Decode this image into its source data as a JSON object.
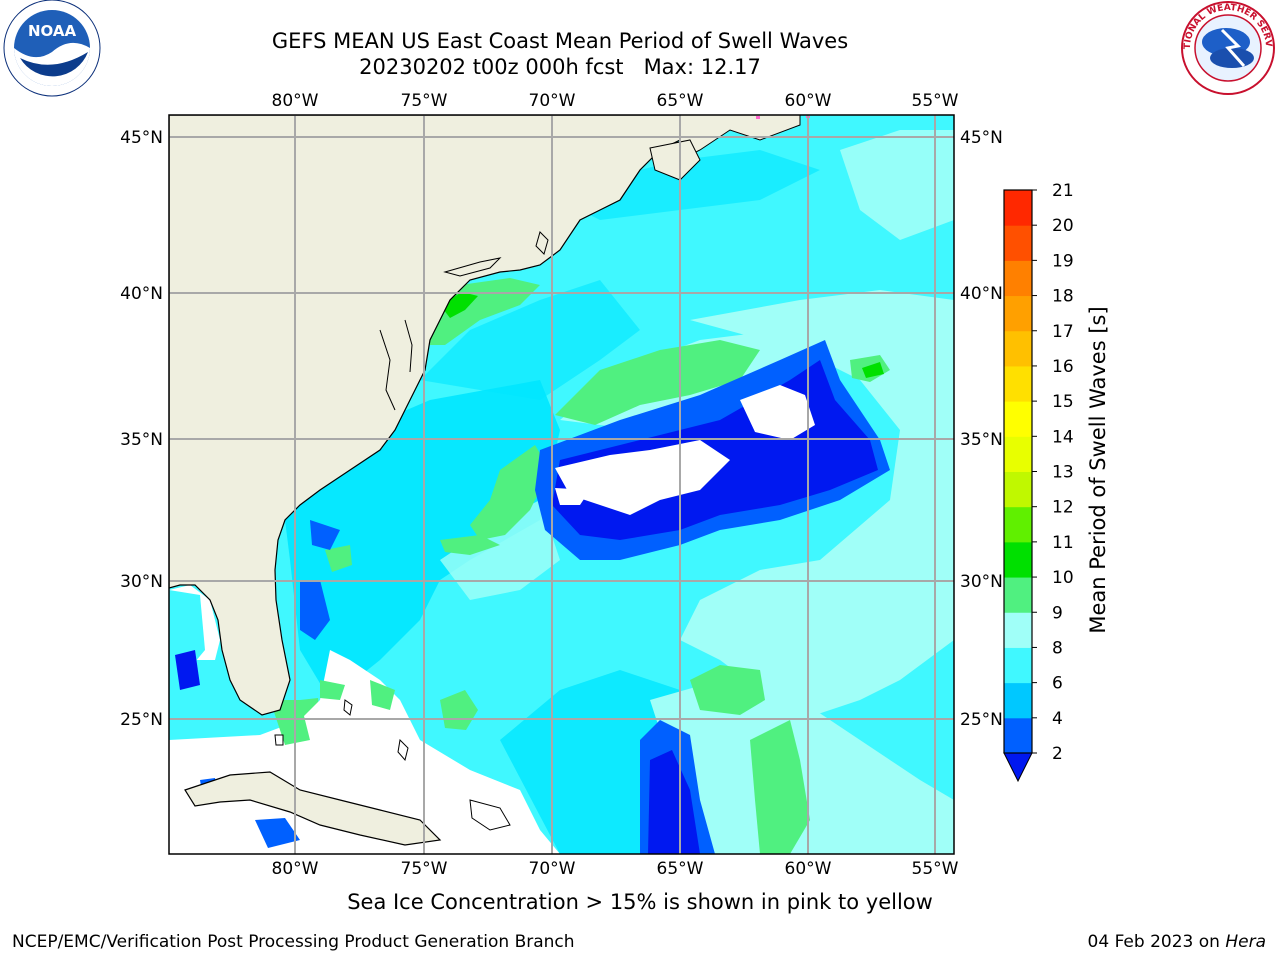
{
  "title": {
    "line1": "GEFS MEAN US East Coast Mean Period of Swell Waves",
    "line2": "20230202 t00z 000h fcst   Max: 12.17"
  },
  "logos": {
    "left": {
      "name": "noaa-logo",
      "text": "NOAA",
      "ring_text": "NATIONAL OCEANIC AND ATMOSPHERIC ADMINISTRATION · U.S. DEPARTMENT OF COMMERCE"
    },
    "right": {
      "name": "nws-logo",
      "ring_text": "NATIONAL WEATHER SERVICE"
    }
  },
  "map": {
    "lon_ticks_top": [
      "80°W",
      "75°W",
      "70°W",
      "65°W",
      "60°W",
      "55°W"
    ],
    "lon_ticks_bottom": [
      "80°W",
      "75°W",
      "70°W",
      "65°W",
      "60°W",
      "55°W"
    ],
    "lat_ticks_left": [
      "45°N",
      "40°N",
      "35°N",
      "30°N",
      "25°N"
    ],
    "lat_ticks_right": [
      "45°N",
      "40°N",
      "35°N",
      "30°N",
      "25°N"
    ],
    "lon_range": [
      -85,
      -54.2
    ],
    "lat_range": [
      20.3,
      45.8
    ],
    "land_color": "#efefdf",
    "gridlines": true
  },
  "colorbar": {
    "label": "Mean Period of Swell Waves [s]",
    "ticks": [
      "2",
      "4",
      "6",
      "8",
      "9",
      "10",
      "11",
      "12",
      "13",
      "14",
      "15",
      "16",
      "17",
      "18",
      "19",
      "20",
      "21"
    ],
    "colors": [
      "#0060ff",
      "#00c8ff",
      "#40f8ff",
      "#a0fff8",
      "#50f080",
      "#00e000",
      "#60f000",
      "#c0f800",
      "#e8ff00",
      "#ffff00",
      "#ffe000",
      "#ffc000",
      "#ffa000",
      "#ff8000",
      "#ff5000",
      "#ff2800",
      "#ff0000"
    ],
    "under_color": "#0018f0"
  },
  "caption": "Sea Ice Concentration > 15% is shown in pink to yellow",
  "footer": {
    "left": "NCEP/EMC/Verification Post Processing Product Generation Branch",
    "right_prefix": "04 Feb 2023 on ",
    "right_machine": "Hera"
  }
}
